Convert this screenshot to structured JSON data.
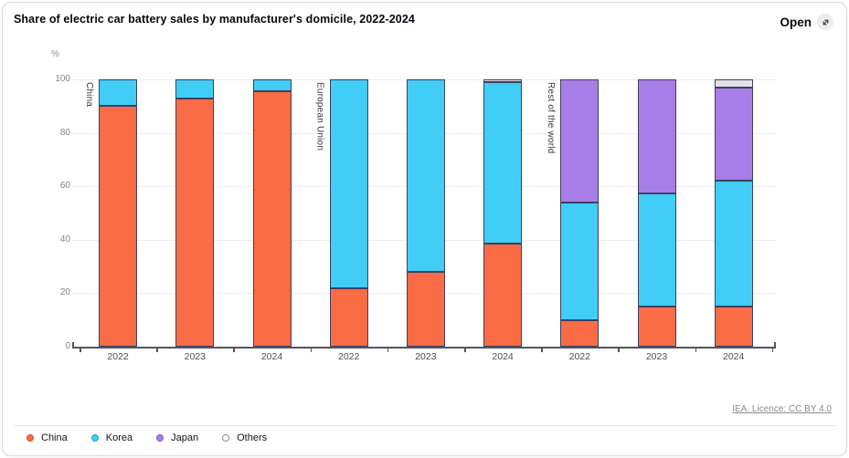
{
  "header": {
    "title": "Share of electric car battery sales by manufacturer's domicile, 2022-2024",
    "open_label": "Open"
  },
  "footer": {
    "license_label": "IEA. Licence: CC BY 4.0"
  },
  "chart_data": {
    "type": "bar",
    "stacked": true,
    "title": "Share of electric car battery sales by manufacturer's domicile, 2022-2024",
    "unit_label": "%",
    "ylim": [
      0,
      100
    ],
    "yticks": [
      0,
      20,
      40,
      60,
      80,
      100
    ],
    "grid": "horizontal",
    "legend_position": "bottom-left",
    "series": [
      "China",
      "Korea",
      "Japan",
      "Others"
    ],
    "colors": {
      "China": "#f96c46",
      "Korea": "#41cdf5",
      "Japan": "#a77ee8",
      "Others": "#e3e1e5"
    },
    "legend_dot_borders": {
      "China": "#c65139",
      "Korea": "#2f9ec2",
      "Japan": "#7f5dc2",
      "Others": "#8f8e96"
    },
    "groups": [
      {
        "label": "China",
        "bars": [
          {
            "year": "2022",
            "stack": {
              "China": 90,
              "Korea": 10,
              "Japan": 0,
              "Others": 0
            }
          },
          {
            "year": "2023",
            "stack": {
              "China": 93,
              "Korea": 7,
              "Japan": 0,
              "Others": 0
            }
          },
          {
            "year": "2024",
            "stack": {
              "China": 95.5,
              "Korea": 4.5,
              "Japan": 0,
              "Others": 0
            }
          }
        ]
      },
      {
        "label": "European Union",
        "bars": [
          {
            "year": "2022",
            "stack": {
              "China": 22,
              "Korea": 78,
              "Japan": 0,
              "Others": 0
            }
          },
          {
            "year": "2023",
            "stack": {
              "China": 28,
              "Korea": 72,
              "Japan": 0,
              "Others": 0
            }
          },
          {
            "year": "2024",
            "stack": {
              "China": 38.5,
              "Korea": 60.5,
              "Japan": 0,
              "Others": 1
            }
          }
        ]
      },
      {
        "label": "Rest of the world",
        "bars": [
          {
            "year": "2022",
            "stack": {
              "China": 10,
              "Korea": 44,
              "Japan": 46,
              "Others": 0
            }
          },
          {
            "year": "2023",
            "stack": {
              "China": 15,
              "Korea": 42.5,
              "Japan": 42.5,
              "Others": 0
            }
          },
          {
            "year": "2024",
            "stack": {
              "China": 15,
              "Korea": 47,
              "Japan": 35,
              "Others": 3
            }
          }
        ]
      }
    ]
  }
}
